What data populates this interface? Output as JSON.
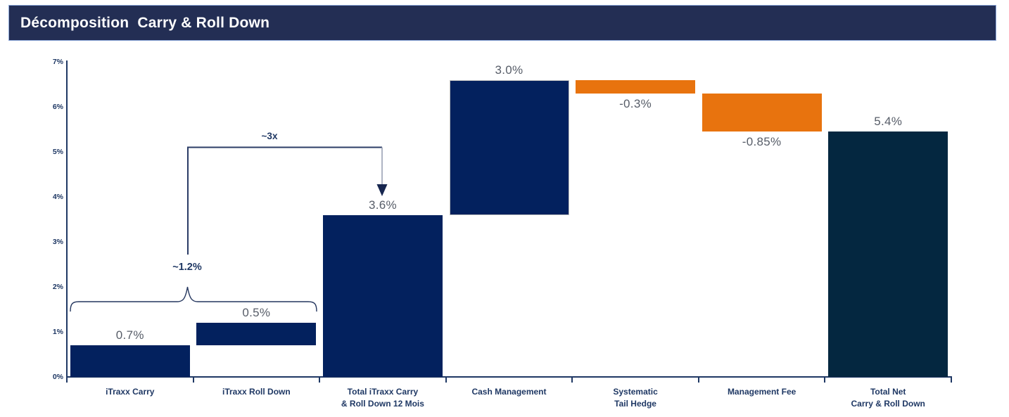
{
  "title_bar": {
    "text": "Décomposition  Carry & Roll Down",
    "background": "#232e54",
    "border": "#8ea9db",
    "text_color": "#ffffff"
  },
  "chart_data": {
    "type": "bar",
    "subtype": "waterfall",
    "title": "Décomposition Carry & Roll Down",
    "unit": "%",
    "grid": "off",
    "y_axis": {
      "min": 0,
      "max": 7,
      "step": 1,
      "tick_labels": [
        "0%",
        "1%",
        "2%",
        "3%",
        "4%",
        "5%",
        "6%",
        "7%"
      ]
    },
    "bars": [
      {
        "name": "itraxx-carry",
        "category_lines": [
          "iTraxx Carry"
        ],
        "start": 0,
        "end": 0.7,
        "value_label": "0.7%",
        "color": "navy",
        "label_pos": "above"
      },
      {
        "name": "itraxx-roll-down",
        "category_lines": [
          "iTraxx Roll Down"
        ],
        "start": 0.7,
        "end": 1.2,
        "value_label": "0.5%",
        "color": "navy",
        "label_pos": "above"
      },
      {
        "name": "total-itraxx",
        "category_lines": [
          "Total iTraxx Carry",
          "& Roll Down 12 Mois"
        ],
        "start": 0,
        "end": 3.6,
        "value_label": "3.6%",
        "color": "navy",
        "label_pos": "above"
      },
      {
        "name": "cash-management",
        "category_lines": [
          "Cash Management"
        ],
        "start": 3.6,
        "end": 6.6,
        "value_label": "3.0%",
        "color": "navy",
        "label_pos": "above",
        "border": "#bfbfbf"
      },
      {
        "name": "systematic-tail-hedge",
        "category_lines": [
          "Systematic",
          "Tail Hedge"
        ],
        "start": 6.6,
        "end": 6.3,
        "value_label": "-0.3%",
        "color": "orange",
        "label_pos": "below"
      },
      {
        "name": "management-fee",
        "category_lines": [
          "Management Fee"
        ],
        "start": 6.3,
        "end": 5.45,
        "value_label": "-0.85%",
        "color": "orange",
        "label_pos": "below"
      },
      {
        "name": "total-net",
        "category_lines": [
          "Total Net",
          "Carry & Roll Down"
        ],
        "start": 0,
        "end": 5.45,
        "value_label": "5.4%",
        "color": "navyDark",
        "label_pos": "above"
      }
    ],
    "annotations": [
      {
        "id": "multiplier",
        "text": "~3x"
      },
      {
        "id": "sum",
        "text": "~1.2%"
      }
    ],
    "colors": {
      "navy": "#03215e",
      "navyDark": "#042740",
      "orange": "#e8730e",
      "axis": "#1f3864",
      "value_label": "#575d68",
      "annotation": "#203864"
    }
  }
}
